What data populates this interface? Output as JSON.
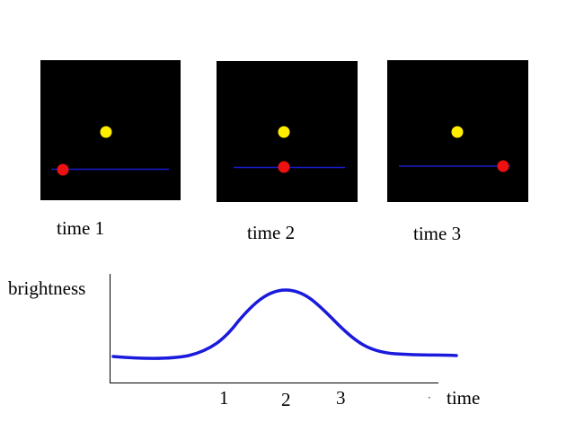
{
  "panels": [
    {
      "label": "time 1"
    },
    {
      "label": "time 2"
    },
    {
      "label": "time 3"
    }
  ],
  "graph": {
    "y_label": "brightness",
    "x_label": "time",
    "x_ticks": [
      "1",
      "2",
      "3"
    ]
  }
}
